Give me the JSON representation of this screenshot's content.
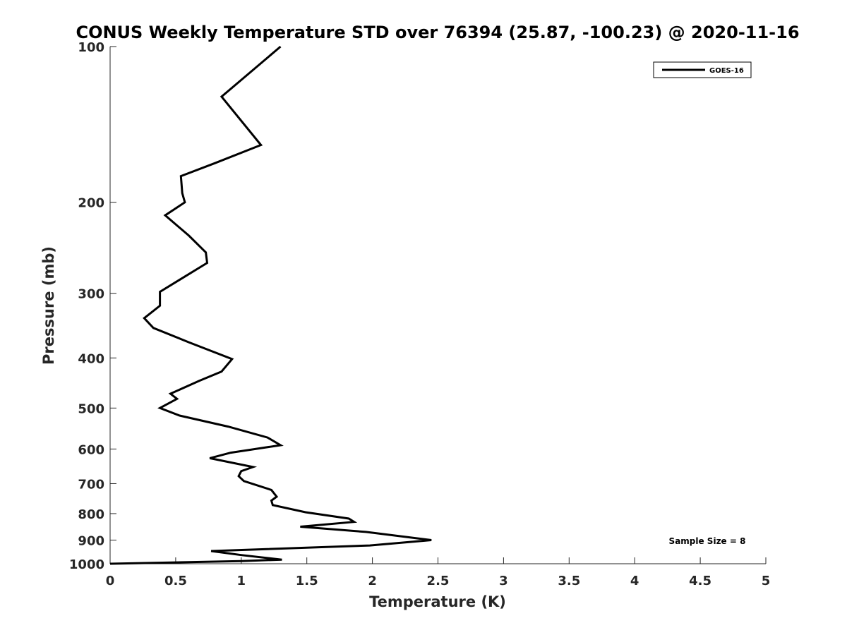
{
  "chart_data": {
    "type": "line",
    "title": "CONUS Weekly Temperature STD over 76394 (25.87, -100.23) @ 2020-11-16",
    "xlabel": "Temperature (K)",
    "ylabel": "Pressure (mb)",
    "xlim": [
      0,
      5
    ],
    "ylim": [
      100,
      1000
    ],
    "y_scale": "log",
    "y_reversed": true,
    "x_ticks": [
      "0",
      "0.5",
      "1",
      "1.5",
      "2",
      "2.5",
      "3",
      "3.5",
      "4",
      "4.5",
      "5"
    ],
    "y_ticks": [
      "100",
      "200",
      "300",
      "400",
      "500",
      "600",
      "700",
      "800",
      "900",
      "1000"
    ],
    "grid": false,
    "legend": {
      "position": "top-right",
      "entries": [
        "GOES-16"
      ]
    },
    "annotation": "Sample Size = 8",
    "series": [
      {
        "name": "GOES-16",
        "color": "#000000",
        "points": [
          [
            1.3,
            100
          ],
          [
            0.85,
            125
          ],
          [
            1.15,
            155
          ],
          [
            0.8,
            168
          ],
          [
            0.54,
            178
          ],
          [
            0.55,
            192
          ],
          [
            0.57,
            200
          ],
          [
            0.42,
            212
          ],
          [
            0.6,
            232
          ],
          [
            0.73,
            250
          ],
          [
            0.74,
            262
          ],
          [
            0.38,
            298
          ],
          [
            0.38,
            317
          ],
          [
            0.26,
            335
          ],
          [
            0.33,
            350
          ],
          [
            0.6,
            373
          ],
          [
            0.93,
            402
          ],
          [
            0.85,
            425
          ],
          [
            0.68,
            443
          ],
          [
            0.46,
            469
          ],
          [
            0.51,
            480
          ],
          [
            0.38,
            500
          ],
          [
            0.53,
            517
          ],
          [
            0.9,
            543
          ],
          [
            1.2,
            570
          ],
          [
            1.3,
            590
          ],
          [
            0.92,
            610
          ],
          [
            0.76,
            625
          ],
          [
            1.09,
            650
          ],
          [
            1.0,
            662
          ],
          [
            0.98,
            677
          ],
          [
            1.02,
            692
          ],
          [
            1.23,
            720
          ],
          [
            1.27,
            742
          ],
          [
            1.23,
            755
          ],
          [
            1.24,
            770
          ],
          [
            1.49,
            795
          ],
          [
            1.82,
            818
          ],
          [
            1.86,
            830
          ],
          [
            1.45,
            848
          ],
          [
            1.95,
            868
          ],
          [
            2.45,
            900
          ],
          [
            1.98,
            922
          ],
          [
            0.77,
            945
          ],
          [
            1.0,
            962
          ],
          [
            1.31,
            982
          ],
          [
            1.0,
            988
          ],
          [
            0.5,
            994
          ],
          [
            0.0,
            1000
          ]
        ]
      }
    ]
  }
}
